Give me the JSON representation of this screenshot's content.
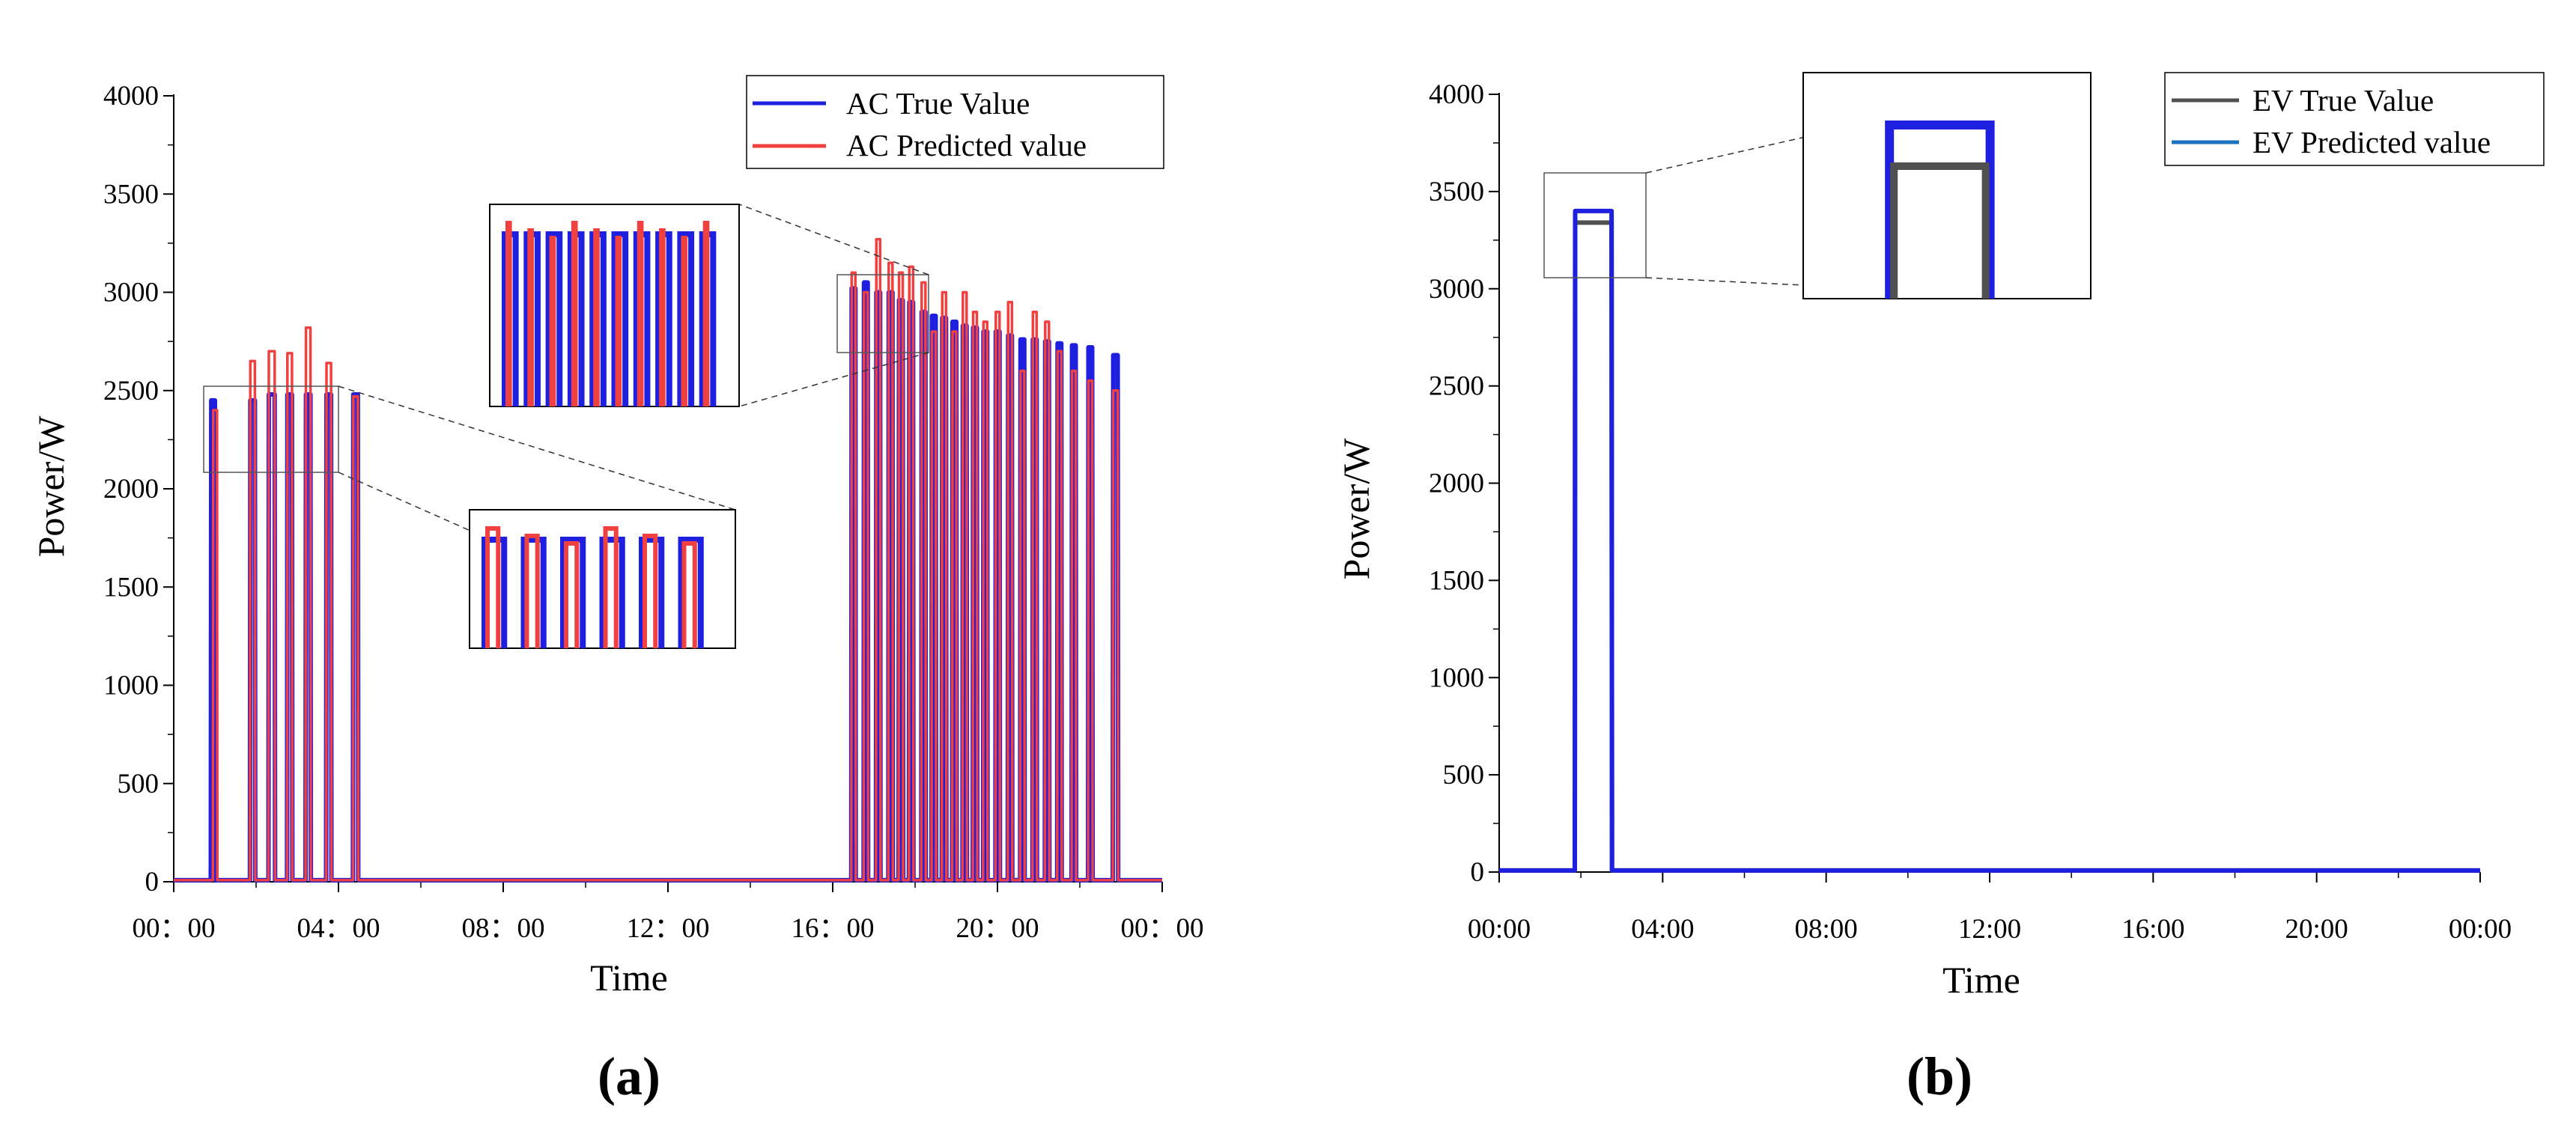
{
  "chart_data": [
    {
      "panel": "a",
      "type": "line",
      "caption": "(a)",
      "xlabel": "Time",
      "ylabel": "Power/W",
      "ylim": [
        0,
        4000
      ],
      "yticks": [
        0,
        500,
        1000,
        1500,
        2000,
        2500,
        3000,
        3500,
        4000
      ],
      "xlim_hours": [
        0,
        24
      ],
      "xticks": [
        {
          "h": 0,
          "label": "00：00"
        },
        {
          "h": 4,
          "label": "04：00"
        },
        {
          "h": 8,
          "label": "08：00"
        },
        {
          "h": 12,
          "label": "12：00"
        },
        {
          "h": 16,
          "label": "16：00"
        },
        {
          "h": 20,
          "label": "20：00"
        },
        {
          "h": 24,
          "label": "00：00"
        }
      ],
      "legend": {
        "position": "top-right"
      },
      "insets": 2,
      "series": [
        {
          "name": "AC True Value",
          "color": "#1f1fe0",
          "pulses": [
            [
              0.9,
              0.1,
              2450
            ],
            [
              1.85,
              0.12,
              2450
            ],
            [
              2.3,
              0.15,
              2480
            ],
            [
              2.75,
              0.12,
              2480
            ],
            [
              3.2,
              0.12,
              2480
            ],
            [
              3.7,
              0.12,
              2480
            ],
            [
              4.35,
              0.12,
              2480
            ],
            [
              16.45,
              0.1,
              3020
            ],
            [
              16.75,
              0.1,
              3050
            ],
            [
              17.05,
              0.1,
              3000
            ],
            [
              17.35,
              0.1,
              3000
            ],
            [
              17.6,
              0.1,
              2960
            ],
            [
              17.85,
              0.1,
              2950
            ],
            [
              18.15,
              0.1,
              2900
            ],
            [
              18.4,
              0.1,
              2880
            ],
            [
              18.65,
              0.1,
              2870
            ],
            [
              18.9,
              0.1,
              2850
            ],
            [
              19.15,
              0.1,
              2830
            ],
            [
              19.4,
              0.1,
              2820
            ],
            [
              19.65,
              0.1,
              2800
            ],
            [
              19.95,
              0.1,
              2800
            ],
            [
              20.25,
              0.1,
              2780
            ],
            [
              20.55,
              0.1,
              2760
            ],
            [
              20.85,
              0.1,
              2760
            ],
            [
              21.15,
              0.1,
              2750
            ],
            [
              21.45,
              0.1,
              2740
            ],
            [
              21.8,
              0.1,
              2730
            ],
            [
              22.2,
              0.1,
              2720
            ],
            [
              22.8,
              0.12,
              2680
            ]
          ]
        },
        {
          "name": "AC Predicted value",
          "color": "#f04040",
          "pulses": [
            [
              0.95,
              0.1,
              2400
            ],
            [
              1.85,
              0.12,
              2650
            ],
            [
              2.3,
              0.15,
              2700
            ],
            [
              2.75,
              0.12,
              2690
            ],
            [
              3.2,
              0.12,
              2820
            ],
            [
              3.7,
              0.12,
              2640
            ],
            [
              4.35,
              0.12,
              2470
            ],
            [
              16.45,
              0.1,
              3100
            ],
            [
              16.75,
              0.1,
              3000
            ],
            [
              17.05,
              0.1,
              3270
            ],
            [
              17.35,
              0.1,
              3150
            ],
            [
              17.6,
              0.1,
              3100
            ],
            [
              17.85,
              0.1,
              3130
            ],
            [
              18.15,
              0.1,
              3050
            ],
            [
              18.4,
              0.1,
              2800
            ],
            [
              18.65,
              0.1,
              3000
            ],
            [
              18.9,
              0.1,
              2800
            ],
            [
              19.15,
              0.1,
              3000
            ],
            [
              19.4,
              0.1,
              2900
            ],
            [
              19.65,
              0.1,
              2850
            ],
            [
              19.95,
              0.1,
              2900
            ],
            [
              20.25,
              0.1,
              2950
            ],
            [
              20.55,
              0.1,
              2600
            ],
            [
              20.85,
              0.1,
              2900
            ],
            [
              21.15,
              0.1,
              2850
            ],
            [
              21.45,
              0.1,
              2700
            ],
            [
              21.8,
              0.1,
              2600
            ],
            [
              22.2,
              0.1,
              2550
            ],
            [
              22.8,
              0.12,
              2500
            ]
          ]
        }
      ]
    },
    {
      "panel": "b",
      "type": "line",
      "caption": "(b)",
      "xlabel": "Time",
      "ylabel": "Power/W",
      "ylim": [
        0,
        4000
      ],
      "yticks": [
        0,
        500,
        1000,
        1500,
        2000,
        2500,
        3000,
        3500,
        4000
      ],
      "xlim_hours": [
        0,
        24
      ],
      "xticks": [
        {
          "h": 0,
          "label": "00:00"
        },
        {
          "h": 4,
          "label": "04:00"
        },
        {
          "h": 8,
          "label": "08:00"
        },
        {
          "h": 12,
          "label": "12:00"
        },
        {
          "h": 16,
          "label": "16:00"
        },
        {
          "h": 20,
          "label": "20:00"
        },
        {
          "h": 24,
          "label": "00:00"
        }
      ],
      "legend": {
        "position": "top-right"
      },
      "insets": 1,
      "series": [
        {
          "name": "EV True Value",
          "color": "#505050",
          "pulses": [
            [
              1.85,
              0.9,
              3340
            ]
          ]
        },
        {
          "name": "EV Predicted value",
          "color": "#1a72c0",
          "pulses": [
            [
              1.85,
              0.9,
              3400
            ]
          ]
        }
      ]
    }
  ]
}
